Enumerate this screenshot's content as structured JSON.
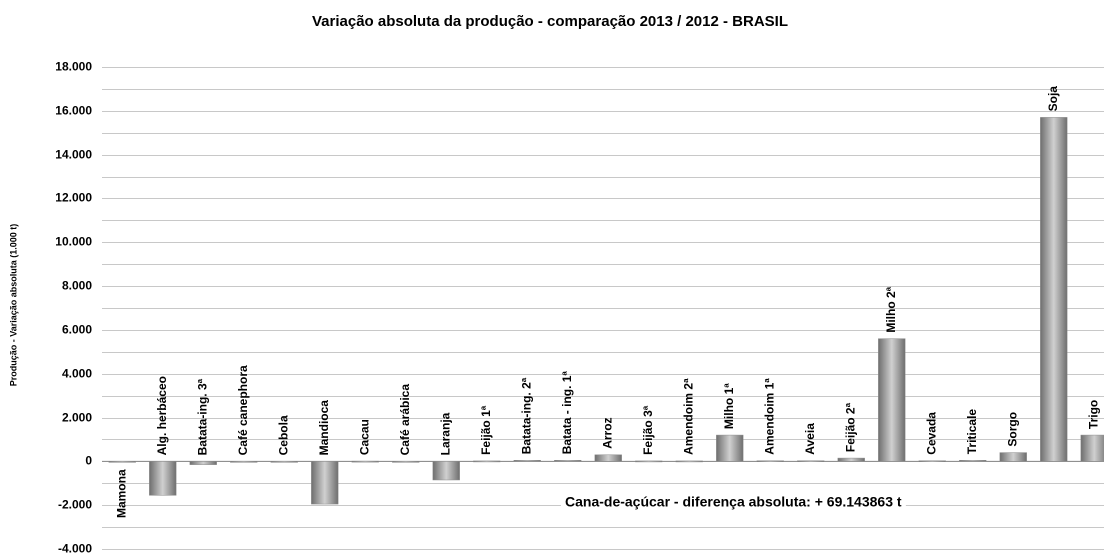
{
  "chart_data": {
    "type": "bar",
    "title": "Variação absoluta da produção - comparação 2013 / 2012 - BRASIL",
    "y_label": "Produção - Variação absoluta (1.000 t)",
    "annotation": "Cana-de-açúcar - diferença absoluta: + 69.143863 t",
    "categories": [
      "Mamona",
      "Alg. herbáceo",
      "Batata-ing. 3ª",
      "Café canephora",
      "Cebola",
      "Mandioca",
      "Cacau",
      "Café arábica",
      "Laranja",
      "Feijão 1ª",
      "Batata-ing. 2ª",
      "Batata - ing. 1ª",
      "Arroz",
      "Feijão 3ª",
      "Amendoim 2ª",
      "Milho 1ª",
      "Amendoim 1ª",
      "Aveia",
      "Feijão 2ª",
      "Milho 2ª",
      "Cevada",
      "Triticale",
      "Sorgo",
      "Soja",
      "Trigo"
    ],
    "values": [
      -20,
      -1550,
      -150,
      -30,
      -30,
      -1950,
      10,
      -40,
      -850,
      20,
      50,
      50,
      300,
      20,
      20,
      1200,
      30,
      30,
      150,
      5600,
      30,
      50,
      400,
      15700,
      1200
    ],
    "color": "#8c8c8c",
    "ylim": [
      -4000,
      18000
    ],
    "yticks": [
      {
        "value": -4000,
        "label": "-4.000"
      },
      {
        "value": -2000,
        "label": "-2.000"
      },
      0,
      {
        "value": 2000,
        "label": "2.000"
      },
      {
        "value": 4000,
        "label": "4.000"
      },
      {
        "value": 6000,
        "label": "6.000"
      },
      {
        "value": 8000,
        "label": "8.000"
      },
      {
        "value": 10000,
        "label": "10.000"
      },
      {
        "value": 12000,
        "label": "12.000"
      },
      {
        "value": 14000,
        "label": "14.000"
      },
      {
        "value": 16000,
        "label": "16.000"
      },
      {
        "value": 18000,
        "label": "18.000"
      }
    ],
    "minor_yticks": [
      -3000,
      -1000,
      1000,
      3000,
      5000,
      7000,
      9000,
      11000,
      13000,
      15000,
      17000
    ],
    "grid": true
  }
}
